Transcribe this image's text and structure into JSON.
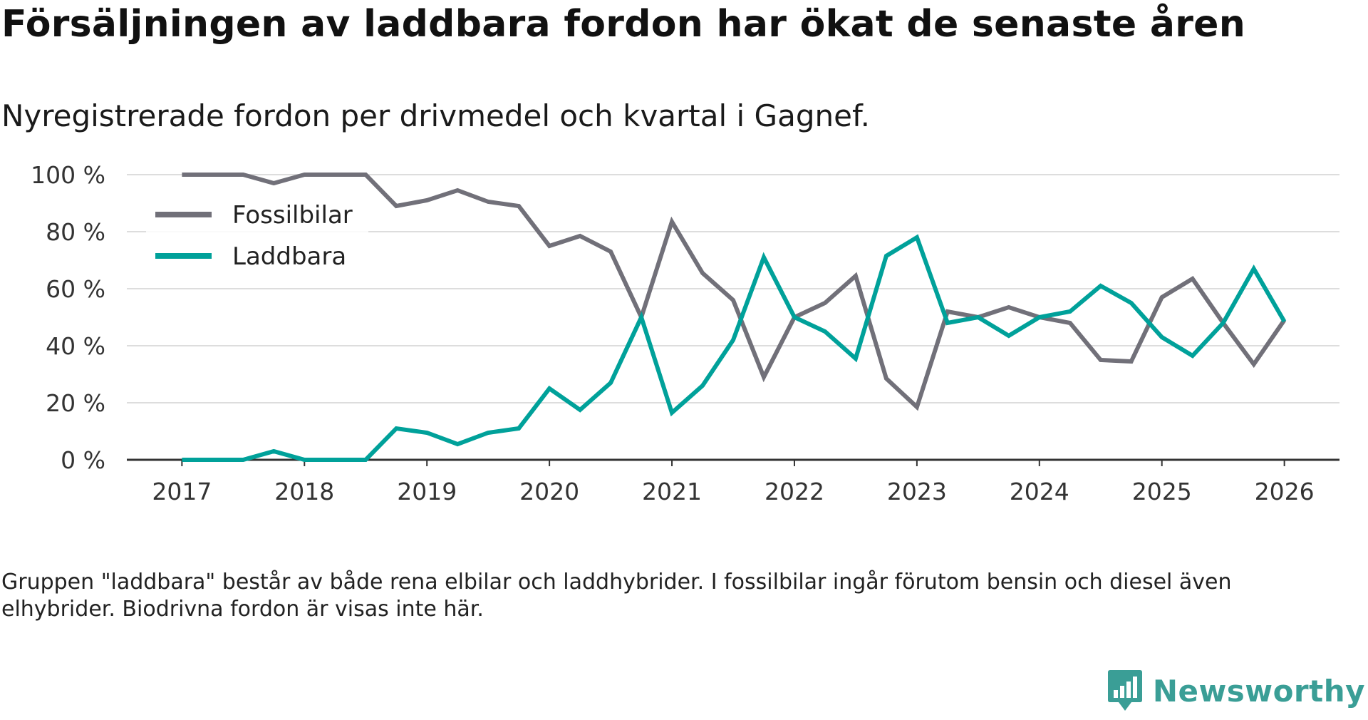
{
  "title": "Försäljningen av laddbara fordon har ökat de senaste åren",
  "subtitle": "Nyregistrerade fordon per drivmedel och kvartal i Gagnef.",
  "footnote": "Gruppen \"laddbara\" består av både rena elbilar och laddhybrider. I fossilbilar ingår förutom bensin och diesel även elhybrider. Biodrivna fordon är visas inte här.",
  "brand": {
    "name": "Newsworthy",
    "icon": "newsworthy-logo-icon"
  },
  "colors": {
    "fossil": "#717079",
    "laddbara": "#00a19a",
    "grid": "#dddddd",
    "axis": "#333333",
    "brand": "#3a9e96"
  },
  "chart_data": {
    "type": "line",
    "title": "Försäljningen av laddbara fordon har ökat de senaste åren",
    "subtitle": "Nyregistrerade fordon per drivmedel och kvartal i Gagnef.",
    "xlabel": "",
    "ylabel": "",
    "x": [
      2017.0,
      2017.25,
      2017.5,
      2017.75,
      2018.0,
      2018.25,
      2018.5,
      2018.75,
      2019.0,
      2019.25,
      2019.5,
      2019.75,
      2020.0,
      2020.25,
      2020.5,
      2020.75,
      2021.0,
      2021.25,
      2021.5,
      2021.75,
      2022.0,
      2022.25,
      2022.5,
      2022.75,
      2023.0,
      2023.25,
      2023.5,
      2023.75,
      2024.0,
      2024.25,
      2024.5,
      2024.75,
      2025.0,
      2025.25,
      2025.5,
      2025.75,
      2026.0
    ],
    "xlim": [
      2016.55,
      2026.45
    ],
    "ylim": [
      0,
      100
    ],
    "x_ticks": [
      2017,
      2018,
      2019,
      2020,
      2021,
      2022,
      2023,
      2024,
      2025,
      2026
    ],
    "x_tick_labels": [
      "2017",
      "2018",
      "2019",
      "2020",
      "2021",
      "2022",
      "2023",
      "2024",
      "2025",
      "2026"
    ],
    "y_ticks": [
      0,
      20,
      40,
      60,
      80,
      100
    ],
    "y_tick_labels": [
      "0 %",
      "20 %",
      "40 %",
      "60 %",
      "80 %",
      "100 %"
    ],
    "grid": true,
    "legend_position": "top-left",
    "series": [
      {
        "name": "Fossilbilar",
        "color": "#717079",
        "values": [
          100,
          100,
          100,
          97,
          100,
          100,
          100,
          89,
          91,
          94.5,
          90.5,
          89,
          75,
          78.5,
          73,
          50,
          83.5,
          65.5,
          56,
          29,
          50,
          55,
          64.5,
          28.5,
          18.5,
          52,
          50,
          53.5,
          50,
          48,
          35,
          34.5,
          57,
          63.5,
          48,
          33.5,
          49
        ]
      },
      {
        "name": "Laddbara",
        "color": "#00a19a",
        "values": [
          0,
          0,
          0,
          3,
          0,
          0,
          0,
          11,
          9.5,
          5.5,
          9.5,
          11,
          25,
          17.5,
          27,
          50,
          16.5,
          26,
          42,
          71,
          50,
          45,
          35.5,
          71.5,
          78,
          48,
          50,
          43.5,
          50,
          52,
          61,
          55,
          43,
          36.5,
          48,
          67,
          48.5
        ]
      }
    ]
  }
}
